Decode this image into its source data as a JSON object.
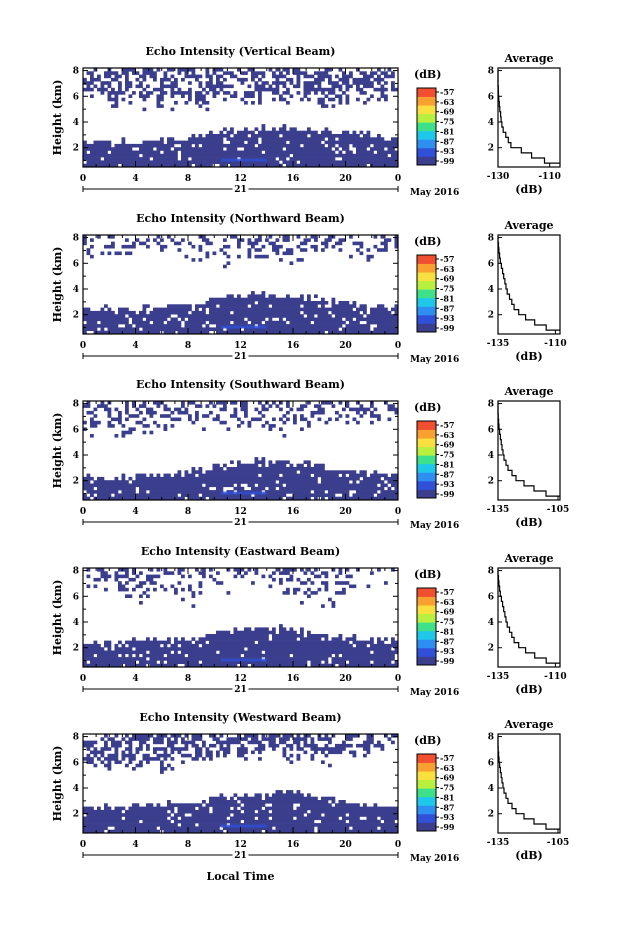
{
  "figure": {
    "footer_label": "Local Time",
    "date_label": "May 2016"
  },
  "colorbar": {
    "unit_label": "(dB)",
    "ticks": [
      "-57",
      "-63",
      "-69",
      "-75",
      "-81",
      "-87",
      "-93",
      "-99"
    ],
    "colors": [
      "#3a3e8c",
      "#3050d8",
      "#2f8ff0",
      "#1fc8e8",
      "#3ee08a",
      "#b8f040",
      "#f8e040",
      "#f8a030",
      "#f05030"
    ]
  },
  "chart_data": [
    {
      "type": "heatmap",
      "title": "Echo Intensity (Vertical Beam)",
      "ylabel": "Height (km)",
      "xlabel": "Local Time",
      "x_ticks": [
        "0",
        "4",
        "8",
        "12",
        "16",
        "20",
        "0"
      ],
      "day_label": "21",
      "y_ticks": [
        "2",
        "4",
        "6",
        "8"
      ],
      "xlim": [
        0,
        24
      ],
      "ylim": [
        0.5,
        8.2
      ],
      "layers": {
        "low_top": [
          2.5,
          2.5,
          2.6,
          2.8,
          3.3,
          3.5,
          3.5,
          3.4,
          3.0,
          2.8
        ],
        "upper_base": [
          6.4,
          5.6,
          5.5,
          5.6,
          6.0,
          6.2,
          5.9,
          5.7,
          5.5,
          6.2
        ],
        "upper_density": 0.5
      },
      "profile": {
        "title": "Average",
        "xlabel": "(dB)",
        "x_ticks": [
          "-130",
          "-110"
        ],
        "xlim": [
          -130,
          -106
        ],
        "y_ticks": [
          "2",
          "4",
          "6",
          "8"
        ],
        "ylim": [
          0.5,
          8.2
        ],
        "heights": [
          0.8,
          1.2,
          1.6,
          2.0,
          2.4,
          2.8,
          3.2,
          3.6,
          4.0,
          4.4,
          4.8,
          5.2,
          5.6,
          6.0,
          6.4,
          6.8,
          7.2,
          7.6,
          8.0
        ],
        "values": [
          -106,
          -112,
          -117,
          -121,
          -125,
          -126,
          -127,
          -128,
          -128.5,
          -128.8,
          -129,
          -129.3,
          -129.5,
          -129.7,
          -129.8,
          -129.9,
          -130,
          -130,
          -130
        ]
      }
    },
    {
      "type": "heatmap",
      "title": "Echo Intensity (Northward Beam)",
      "ylabel": "Height (km)",
      "xlabel": "Local Time",
      "x_ticks": [
        "0",
        "4",
        "8",
        "12",
        "16",
        "20",
        "0"
      ],
      "day_label": "21",
      "y_ticks": [
        "2",
        "4",
        "6",
        "8"
      ],
      "xlim": [
        0,
        24
      ],
      "ylim": [
        0.5,
        8.2
      ],
      "layers": {
        "low_top": [
          2.4,
          2.5,
          2.6,
          2.8,
          3.4,
          3.6,
          3.4,
          3.1,
          2.7,
          2.6
        ],
        "upper_base": [
          6.8,
          7.0,
          7.2,
          6.8,
          6.5,
          6.6,
          6.2,
          6.6,
          7.0,
          7.3
        ],
        "upper_density": 0.3
      },
      "profile": {
        "title": "Average",
        "xlabel": "(dB)",
        "x_ticks": [
          "-135",
          "-110"
        ],
        "xlim": [
          -135,
          -108
        ],
        "y_ticks": [
          "2",
          "4",
          "6",
          "8"
        ],
        "ylim": [
          0.5,
          8.2
        ],
        "heights": [
          0.8,
          1.2,
          1.6,
          2.0,
          2.4,
          2.8,
          3.2,
          3.6,
          4.0,
          4.4,
          4.8,
          5.2,
          5.6,
          6.0,
          6.4,
          6.8,
          7.2,
          7.6,
          8.0
        ],
        "values": [
          -108,
          -114,
          -119,
          -123,
          -126,
          -128,
          -129,
          -130,
          -131,
          -131.5,
          -132,
          -132.5,
          -133,
          -133.5,
          -134,
          -134.3,
          -134.6,
          -134.8,
          -135
        ]
      }
    },
    {
      "type": "heatmap",
      "title": "Echo Intensity (Southward Beam)",
      "ylabel": "Height (km)",
      "xlabel": "Local Time",
      "x_ticks": [
        "0",
        "4",
        "8",
        "12",
        "16",
        "20",
        "0"
      ],
      "day_label": "21",
      "y_ticks": [
        "2",
        "4",
        "6",
        "8"
      ],
      "xlim": [
        0,
        24
      ],
      "ylim": [
        0.5,
        8.2
      ],
      "layers": {
        "low_top": [
          2.2,
          2.3,
          2.5,
          2.8,
          3.3,
          3.5,
          3.5,
          3.0,
          2.6,
          2.4
        ],
        "upper_base": [
          6.2,
          5.8,
          6.2,
          6.8,
          6.6,
          6.5,
          6.2,
          6.8,
          7.0,
          7.4
        ],
        "upper_density": 0.35
      },
      "profile": {
        "title": "Average",
        "xlabel": "(dB)",
        "x_ticks": [
          "-135",
          "-105"
        ],
        "xlim": [
          -135,
          -104
        ],
        "y_ticks": [
          "2",
          "4",
          "6",
          "8"
        ],
        "ylim": [
          0.5,
          8.2
        ],
        "heights": [
          0.8,
          1.2,
          1.6,
          2.0,
          2.4,
          2.8,
          3.2,
          3.6,
          4.0,
          4.4,
          4.8,
          5.2,
          5.6,
          6.0,
          6.4,
          6.8,
          7.2,
          7.6,
          8.0
        ],
        "values": [
          -104,
          -111,
          -117,
          -122,
          -126,
          -128,
          -130,
          -131,
          -132,
          -132.5,
          -133,
          -133.4,
          -133.8,
          -134.2,
          -134.5,
          -134.7,
          -134.9,
          -135,
          -135
        ]
      }
    },
    {
      "type": "heatmap",
      "title": "Echo Intensity (Eastward Beam)",
      "ylabel": "Height (km)",
      "xlabel": "Local Time",
      "x_ticks": [
        "0",
        "4",
        "8",
        "12",
        "16",
        "20",
        "0"
      ],
      "day_label": "21",
      "y_ticks": [
        "2",
        "4",
        "6",
        "8"
      ],
      "xlim": [
        0,
        24
      ],
      "ylim": [
        0.5,
        8.2
      ],
      "layers": {
        "low_top": [
          2.4,
          2.5,
          2.6,
          2.7,
          3.3,
          3.6,
          3.4,
          3.1,
          2.6,
          2.5
        ],
        "upper_base": [
          6.6,
          6.4,
          6.2,
          6.0,
          7.2,
          7.6,
          6.0,
          5.8,
          7.4,
          7.8
        ],
        "upper_density": 0.3
      },
      "profile": {
        "title": "Average",
        "xlabel": "(dB)",
        "x_ticks": [
          "-135",
          "-110"
        ],
        "xlim": [
          -135,
          -108
        ],
        "y_ticks": [
          "2",
          "4",
          "6",
          "8"
        ],
        "ylim": [
          0.5,
          8.2
        ],
        "heights": [
          0.8,
          1.2,
          1.6,
          2.0,
          2.4,
          2.8,
          3.2,
          3.6,
          4.0,
          4.4,
          4.8,
          5.2,
          5.6,
          6.0,
          6.4,
          6.8,
          7.2,
          7.6,
          8.0
        ],
        "values": [
          -108,
          -114,
          -119,
          -123,
          -126,
          -128,
          -129,
          -130,
          -131,
          -131.5,
          -132,
          -132.5,
          -133,
          -133.5,
          -134,
          -134.3,
          -134.6,
          -134.8,
          -135
        ]
      }
    },
    {
      "type": "heatmap",
      "title": "Echo Intensity (Westward Beam)",
      "ylabel": "Height (km)",
      "xlabel": "Local Time",
      "x_ticks": [
        "0",
        "4",
        "8",
        "12",
        "16",
        "20",
        "0"
      ],
      "day_label": "21",
      "y_ticks": [
        "2",
        "4",
        "6",
        "8"
      ],
      "xlim": [
        0,
        24
      ],
      "ylim": [
        0.5,
        8.2
      ],
      "layers": {
        "low_top": [
          2.4,
          2.5,
          2.7,
          2.9,
          3.4,
          3.6,
          3.5,
          3.2,
          2.7,
          2.5
        ],
        "upper_base": [
          5.8,
          5.6,
          5.9,
          6.4,
          6.8,
          7.0,
          6.8,
          6.6,
          7.2,
          7.6
        ],
        "upper_density": 0.55
      },
      "profile": {
        "title": "Average",
        "xlabel": "(dB)",
        "x_ticks": [
          "-135",
          "-105"
        ],
        "xlim": [
          -135,
          -104
        ],
        "y_ticks": [
          "2",
          "4",
          "6",
          "8"
        ],
        "ylim": [
          0.5,
          8.2
        ],
        "heights": [
          0.8,
          1.2,
          1.6,
          2.0,
          2.4,
          2.8,
          3.2,
          3.6,
          4.0,
          4.4,
          4.8,
          5.2,
          5.6,
          6.0,
          6.4,
          6.8,
          7.2,
          7.6,
          8.0
        ],
        "values": [
          -104,
          -111,
          -117,
          -122,
          -126,
          -128,
          -130,
          -131,
          -132,
          -132.5,
          -133,
          -133.4,
          -133.8,
          -134.2,
          -134.5,
          -134.7,
          -134.9,
          -135,
          -135
        ]
      }
    }
  ]
}
